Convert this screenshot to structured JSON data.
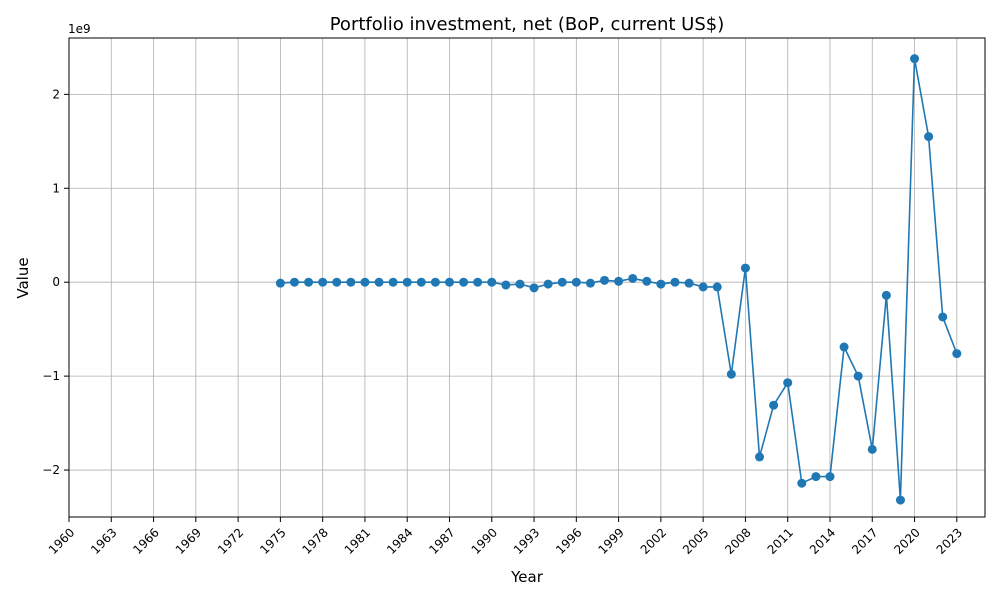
{
  "chart_data": {
    "type": "line",
    "title": "Portfolio investment, net (BoP, current US$)",
    "xlabel": "Year",
    "ylabel": "Value",
    "y_scale_label": "1e9",
    "xlim": [
      1960,
      2025
    ],
    "ylim": [
      -2.5,
      2.6
    ],
    "x_ticks": [
      1960,
      1963,
      1966,
      1969,
      1972,
      1975,
      1978,
      1981,
      1984,
      1987,
      1990,
      1993,
      1996,
      1999,
      2002,
      2005,
      2008,
      2011,
      2014,
      2017,
      2020,
      2023
    ],
    "y_ticks": [
      2,
      1,
      0,
      -1,
      -2
    ],
    "y_tick_labels": [
      "2",
      "1",
      "0",
      "−1",
      "−2"
    ],
    "grid": true,
    "color": "#1f77b4",
    "series": [
      {
        "x": [
          1975,
          1976,
          1977,
          1978,
          1979,
          1980,
          1981,
          1982,
          1983,
          1984,
          1985,
          1986,
          1987,
          1988,
          1989,
          1990,
          1991,
          1992,
          1993,
          1994,
          1995,
          1996,
          1997,
          1998,
          1999,
          2000,
          2001,
          2002,
          2003,
          2004,
          2005,
          2006,
          2007,
          2008,
          2009,
          2010,
          2011,
          2012,
          2013,
          2014,
          2015,
          2016,
          2017,
          2018,
          2019,
          2020,
          2021,
          2022,
          2023
        ],
        "y": [
          -0.01,
          0.0,
          0.0,
          0.0,
          0.0,
          0.0,
          0.0,
          0.0,
          0.0,
          0.0,
          0.0,
          0.0,
          0.0,
          0.0,
          0.0,
          0.0,
          -0.03,
          -0.02,
          -0.06,
          -0.02,
          0.0,
          0.0,
          -0.01,
          0.02,
          0.01,
          0.04,
          0.01,
          -0.02,
          0.0,
          -0.01,
          -0.05,
          -0.05,
          -0.98,
          0.15,
          -1.86,
          -1.31,
          -1.07,
          -2.14,
          -2.07,
          -2.07,
          -0.69,
          -1.0,
          -1.78,
          -0.14,
          -2.32,
          2.38,
          1.55,
          -0.37,
          -0.76
        ]
      }
    ]
  }
}
